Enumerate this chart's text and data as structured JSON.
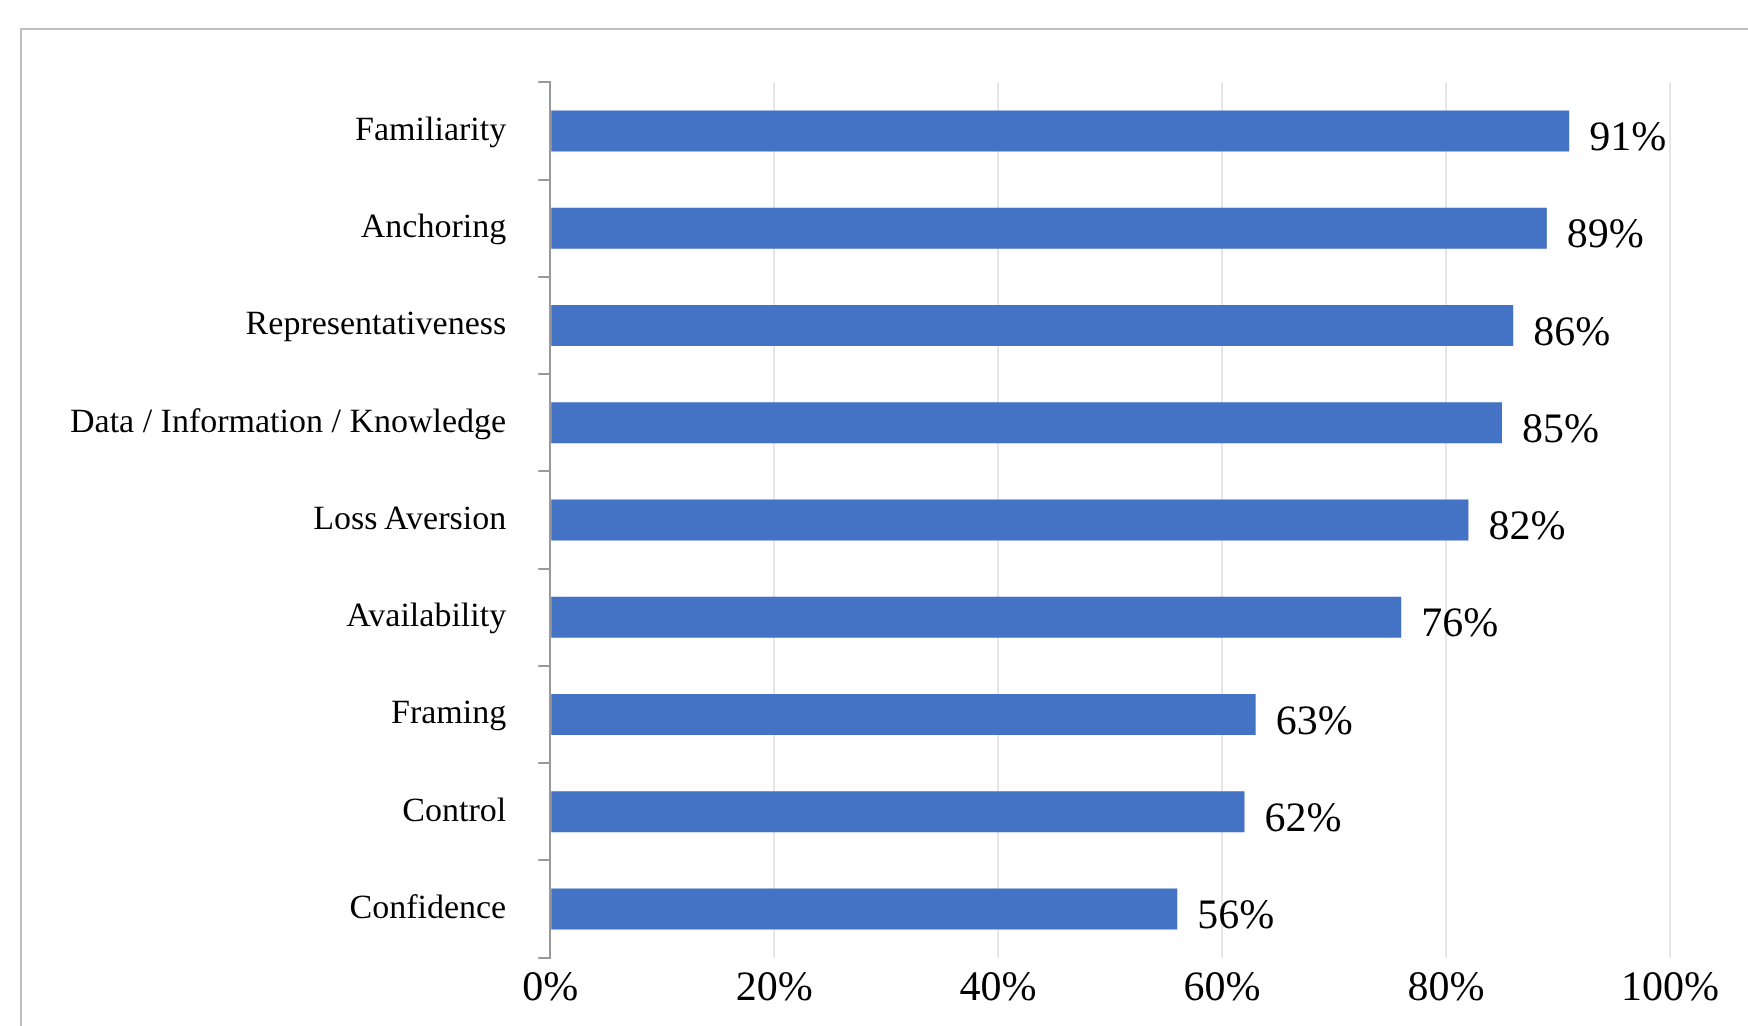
{
  "chart_data": {
    "type": "bar",
    "orientation": "horizontal",
    "categories": [
      "Familiarity",
      "Anchoring",
      "Representativeness",
      "Data / Information / Knowledge",
      "Loss Aversion",
      "Availability",
      "Framing",
      "Control",
      "Confidence"
    ],
    "values": [
      91,
      89,
      86,
      85,
      82,
      76,
      63,
      62,
      56
    ],
    "value_labels": [
      "91%",
      "89%",
      "86%",
      "85%",
      "82%",
      "76%",
      "63%",
      "62%",
      "56%"
    ],
    "color": "#4472c4",
    "xlim": [
      0,
      100
    ],
    "xticks": [
      {
        "value": 0,
        "label": "0%"
      },
      {
        "value": 20,
        "label": "20%"
      },
      {
        "value": 40,
        "label": "40%"
      },
      {
        "value": 60,
        "label": "60%"
      },
      {
        "value": 80,
        "label": "80%"
      },
      {
        "value": 100,
        "label": "100%"
      }
    ],
    "grid": "x",
    "legend": false
  }
}
